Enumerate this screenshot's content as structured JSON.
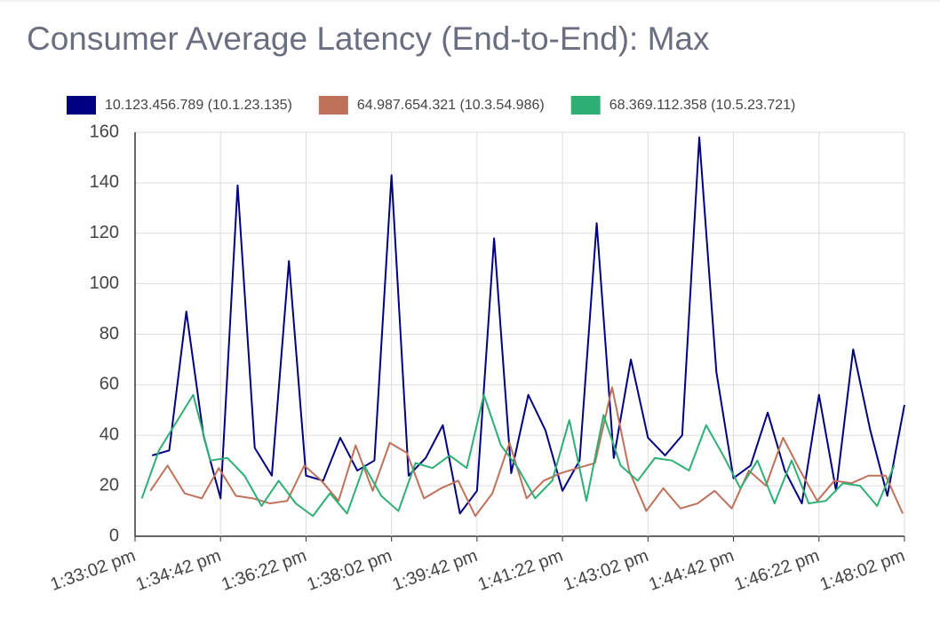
{
  "chart_data": {
    "type": "line",
    "title": "Consumer Average Latency (End-to-End): Max",
    "xlim": [
      "1:33:02 pm",
      "1:48:02 pm"
    ],
    "xticks": [
      "1:33:02 pm",
      "1:34:42 pm",
      "1:36:22 pm",
      "1:38:02 pm",
      "1:39:42 pm",
      "1:41:22 pm",
      "1:43:02 pm",
      "1:44:42 pm",
      "1:46:22 pm",
      "1:48:02 pm"
    ],
    "ylim": [
      0,
      160
    ],
    "yticks": [
      0,
      20,
      40,
      60,
      80,
      100,
      120,
      140,
      160
    ],
    "grid": true,
    "series": [
      {
        "name": "10.123.456.789 (10.1.23.135)",
        "color": "#000080",
        "x": [
          "1:33:22 pm",
          "1:33:42 pm",
          "1:34:02 pm",
          "1:34:22 pm",
          "1:34:42 pm",
          "1:35:02 pm",
          "1:35:22 pm",
          "1:35:42 pm",
          "1:36:02 pm",
          "1:36:22 pm",
          "1:36:42 pm",
          "1:37:02 pm",
          "1:37:22 pm",
          "1:37:42 pm",
          "1:38:02 pm",
          "1:38:22 pm",
          "1:38:42 pm",
          "1:39:02 pm",
          "1:39:22 pm",
          "1:39:42 pm",
          "1:40:02 pm",
          "1:40:22 pm",
          "1:40:42 pm",
          "1:41:02 pm",
          "1:41:22 pm",
          "1:41:42 pm",
          "1:42:02 pm",
          "1:42:22 pm",
          "1:42:42 pm",
          "1:43:02 pm",
          "1:43:22 pm",
          "1:43:42 pm",
          "1:44:02 pm",
          "1:44:22 pm",
          "1:44:42 pm",
          "1:45:02 pm",
          "1:45:22 pm",
          "1:45:42 pm",
          "1:46:02 pm",
          "1:46:22 pm",
          "1:46:42 pm",
          "1:47:02 pm",
          "1:47:22 pm",
          "1:47:42 pm",
          "1:48:02 pm"
        ],
        "values": [
          32,
          34,
          89,
          40,
          15,
          139,
          35,
          24,
          109,
          24,
          22,
          39,
          26,
          30,
          143,
          24,
          31,
          44,
          9,
          18,
          118,
          25,
          56,
          42,
          18,
          30,
          124,
          31,
          70,
          39,
          32,
          40,
          158,
          65,
          23,
          28,
          49,
          26,
          13,
          56,
          18,
          74,
          42,
          16,
          52
        ]
      },
      {
        "name": "64.987.654.321 (10.3.54.986)",
        "color": "#c0715a",
        "x": [
          "1:33:20 pm",
          "1:33:40 pm",
          "1:34:00 pm",
          "1:34:20 pm",
          "1:34:40 pm",
          "1:35:00 pm",
          "1:35:20 pm",
          "1:35:40 pm",
          "1:36:00 pm",
          "1:36:20 pm",
          "1:36:40 pm",
          "1:37:00 pm",
          "1:37:20 pm",
          "1:37:40 pm",
          "1:38:00 pm",
          "1:38:20 pm",
          "1:38:40 pm",
          "1:39:00 pm",
          "1:39:20 pm",
          "1:39:40 pm",
          "1:40:00 pm",
          "1:40:20 pm",
          "1:40:40 pm",
          "1:41:00 pm",
          "1:41:20 pm",
          "1:41:40 pm",
          "1:42:00 pm",
          "1:42:20 pm",
          "1:42:40 pm",
          "1:43:00 pm",
          "1:43:20 pm",
          "1:43:40 pm",
          "1:44:00 pm",
          "1:44:20 pm",
          "1:44:40 pm",
          "1:45:00 pm",
          "1:45:20 pm",
          "1:45:40 pm",
          "1:46:00 pm",
          "1:46:20 pm",
          "1:46:40 pm",
          "1:47:00 pm",
          "1:47:20 pm",
          "1:47:40 pm",
          "1:48:00 pm"
        ],
        "values": [
          18,
          28,
          17,
          15,
          27,
          16,
          15,
          13,
          14,
          28,
          22,
          14,
          36,
          18,
          37,
          33,
          15,
          19,
          22,
          8,
          17,
          37,
          15,
          22,
          25,
          27,
          29,
          59,
          26,
          10,
          19,
          11,
          13,
          18,
          11,
          26,
          20,
          39,
          26,
          14,
          22,
          21,
          24,
          24,
          9
        ]
      },
      {
        "name": "68.369.112.358 (10.5.23.721)",
        "color": "#2eaf74",
        "x": [
          "1:33:10 pm",
          "1:33:30 pm",
          "1:33:50 pm",
          "1:34:10 pm",
          "1:34:30 pm",
          "1:34:50 pm",
          "1:35:10 pm",
          "1:35:30 pm",
          "1:35:50 pm",
          "1:36:10 pm",
          "1:36:30 pm",
          "1:36:50 pm",
          "1:37:10 pm",
          "1:37:30 pm",
          "1:37:50 pm",
          "1:38:10 pm",
          "1:38:30 pm",
          "1:38:50 pm",
          "1:39:10 pm",
          "1:39:30 pm",
          "1:39:50 pm",
          "1:40:10 pm",
          "1:40:30 pm",
          "1:40:50 pm",
          "1:41:10 pm",
          "1:41:30 pm",
          "1:41:50 pm",
          "1:42:10 pm",
          "1:42:30 pm",
          "1:42:50 pm",
          "1:43:10 pm",
          "1:43:30 pm",
          "1:43:50 pm",
          "1:44:10 pm",
          "1:44:30 pm",
          "1:44:50 pm",
          "1:45:10 pm",
          "1:45:30 pm",
          "1:45:50 pm",
          "1:46:10 pm",
          "1:46:30 pm",
          "1:46:50 pm",
          "1:47:10 pm",
          "1:47:30 pm",
          "1:47:50 pm"
        ],
        "values": [
          15,
          34,
          45,
          56,
          30,
          31,
          24,
          12,
          22,
          13,
          8,
          17,
          9,
          28,
          16,
          10,
          29,
          27,
          32,
          27,
          56,
          36,
          27,
          15,
          22,
          46,
          14,
          48,
          28,
          22,
          31,
          30,
          26,
          44,
          32,
          19,
          30,
          13,
          30,
          13,
          14,
          21,
          20,
          12,
          28
        ]
      }
    ]
  }
}
